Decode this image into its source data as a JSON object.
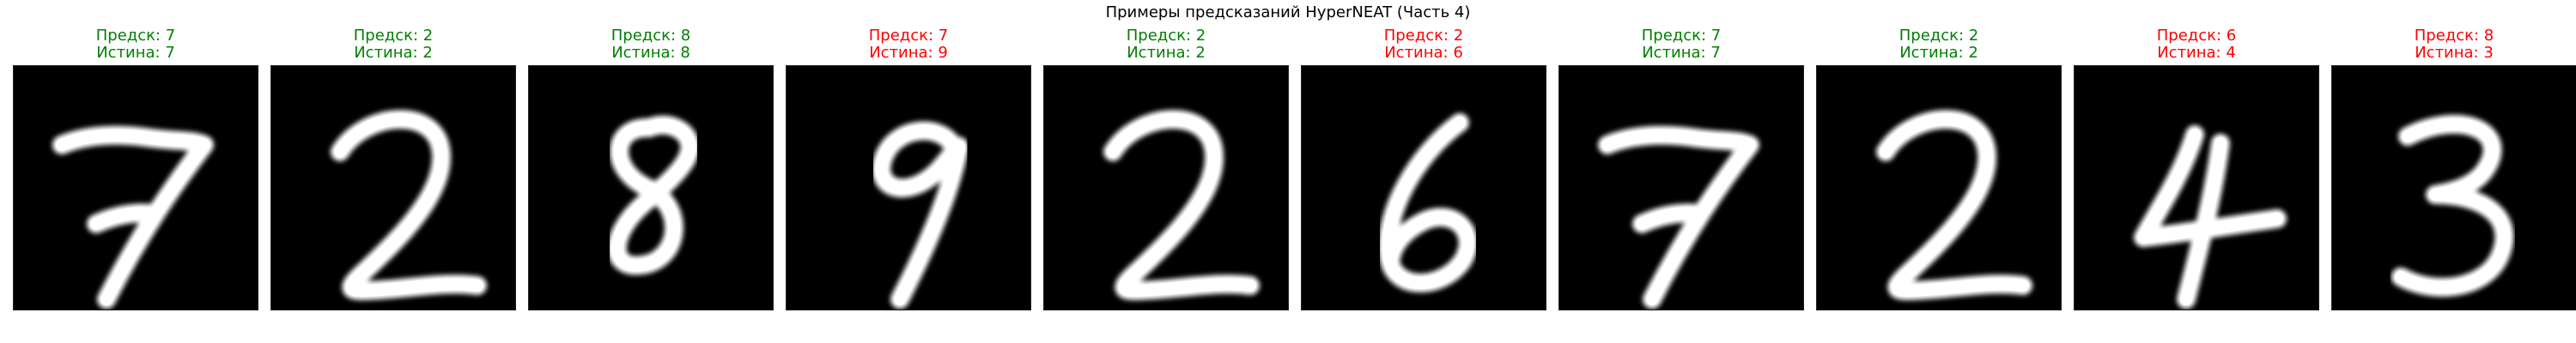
{
  "title": "Примеры предсказаний HyperNEAT (Часть 4)",
  "colors": {
    "correct": "#008000",
    "wrong": "#ff0000"
  },
  "samples": [
    {
      "pred_text": "Предск: 7",
      "true_text": "Истина: 7",
      "correct": true,
      "digit": "7"
    },
    {
      "pred_text": "Предск: 2",
      "true_text": "Истина: 2",
      "correct": true,
      "digit": "2"
    },
    {
      "pred_text": "Предск: 8",
      "true_text": "Истина: 8",
      "correct": true,
      "digit": "8"
    },
    {
      "pred_text": "Предск: 7",
      "true_text": "Истина: 9",
      "correct": false,
      "digit": "9"
    },
    {
      "pred_text": "Предск: 2",
      "true_text": "Истина: 2",
      "correct": true,
      "digit": "2"
    },
    {
      "pred_text": "Предск: 2",
      "true_text": "Истина: 6",
      "correct": false,
      "digit": "6"
    },
    {
      "pred_text": "Предск: 7",
      "true_text": "Истина: 7",
      "correct": true,
      "digit": "7"
    },
    {
      "pred_text": "Предск: 2",
      "true_text": "Истина: 2",
      "correct": true,
      "digit": "2"
    },
    {
      "pred_text": "Предск: 6",
      "true_text": "Истина: 4",
      "correct": false,
      "digit": "4"
    },
    {
      "pred_text": "Предск: 8",
      "true_text": "Истина: 3",
      "correct": false,
      "digit": "3"
    }
  ]
}
